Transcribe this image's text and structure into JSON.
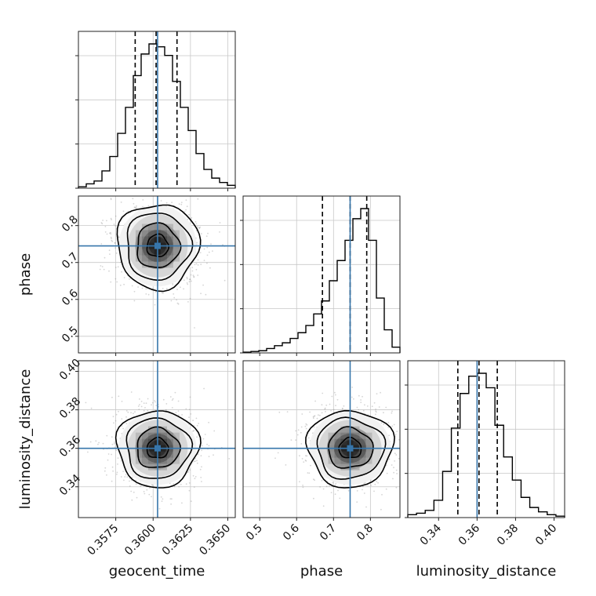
{
  "chart_data": {
    "type": "corner",
    "colors": {
      "truth": "#3776ab",
      "hist": "#000000",
      "contour": "#000000",
      "grid": "#c8c8c8",
      "quantile": "#000000"
    },
    "grid": true,
    "parameters": [
      {
        "name": "geocent_time",
        "label": "geocent_time",
        "range": [
          0.355,
          0.3655
        ],
        "ticks": [
          0.3575,
          0.36,
          0.3625,
          0.365
        ],
        "tick_labels": [
          "0.3575",
          "0.3600",
          "0.3625",
          "0.3650"
        ],
        "truth": 0.3603,
        "quantiles": [
          0.3588,
          0.3602,
          0.3616
        ],
        "hist_counts": [
          0.01,
          0.03,
          0.05,
          0.12,
          0.22,
          0.38,
          0.56,
          0.78,
          0.93,
          1.0,
          0.98,
          0.92,
          0.74,
          0.56,
          0.4,
          0.24,
          0.13,
          0.07,
          0.04,
          0.02
        ]
      },
      {
        "name": "phase",
        "label": "phase",
        "range": [
          0.455,
          0.88
        ],
        "ticks": [
          0.5,
          0.6,
          0.7,
          0.8
        ],
        "tick_labels": [
          "0.5",
          "0.6",
          "0.7",
          "0.8"
        ],
        "truth": 0.745,
        "quantiles": [
          0.67,
          0.745,
          0.79
        ],
        "hist_counts": [
          0.005,
          0.01,
          0.015,
          0.03,
          0.05,
          0.07,
          0.1,
          0.14,
          0.19,
          0.27,
          0.36,
          0.5,
          0.64,
          0.78,
          0.93,
          1.0,
          0.78,
          0.38,
          0.16,
          0.04
        ]
      },
      {
        "name": "luminosity_distance",
        "label": "luminosity_distance",
        "range": [
          0.324,
          0.4055
        ],
        "ticks": [
          0.34,
          0.36,
          0.38,
          0.4
        ],
        "tick_labels": [
          "0.34",
          "0.36",
          "0.38",
          "0.40"
        ],
        "truth": 0.36,
        "quantiles": [
          0.35,
          0.361,
          0.3705
        ],
        "hist_counts": [
          0.02,
          0.03,
          0.05,
          0.12,
          0.32,
          0.62,
          0.86,
          0.98,
          1.0,
          0.9,
          0.64,
          0.42,
          0.26,
          0.14,
          0.07,
          0.04,
          0.02,
          0.01
        ]
      }
    ],
    "pairs": [
      {
        "x": "geocent_time",
        "y": "phase",
        "center": [
          0.3603,
          0.745
        ],
        "sigma": [
          0.0013,
          0.055
        ],
        "corr": 0.05
      },
      {
        "x": "geocent_time",
        "y": "luminosity_distance",
        "center": [
          0.3603,
          0.36
        ],
        "sigma": [
          0.0013,
          0.0095
        ],
        "corr": 0.02
      },
      {
        "x": "phase",
        "y": "luminosity_distance",
        "center": [
          0.745,
          0.36
        ],
        "sigma": [
          0.055,
          0.0095
        ],
        "corr": 0.0
      }
    ]
  }
}
